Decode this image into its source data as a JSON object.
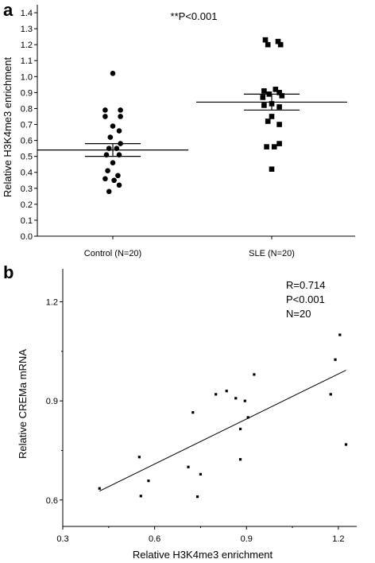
{
  "panel_labels": [
    "a",
    "b"
  ],
  "chart_data": [
    {
      "type": "scatter",
      "subtype": "dot-plot with mean and SEM bars",
      "title": "",
      "annotation": "**P<0.001",
      "xlabel": "",
      "ylabel": "Relative H3K4me3 enrichment",
      "ylim": [
        0,
        1.45
      ],
      "y_ticks": [
        "0.0",
        "0.1",
        "0.2",
        "0.3",
        "0.4",
        "0.5",
        "0.6",
        "0.7",
        "0.8",
        "0.9",
        "1.0",
        "1.1",
        "1.2",
        "1.3",
        "1.4"
      ],
      "categories": [
        "Control (N=20)",
        "SLE (N=20)"
      ],
      "grid": false,
      "series": [
        {
          "marker": "circle",
          "color": "#000000",
          "mean": 0.54,
          "sem_low": 0.5,
          "sem_high": 0.58,
          "points": [
            {
              "dx": 0.0,
              "y": 1.02
            },
            {
              "dx": -0.06,
              "y": 0.79
            },
            {
              "dx": 0.06,
              "y": 0.79
            },
            {
              "dx": -0.06,
              "y": 0.75
            },
            {
              "dx": 0.06,
              "y": 0.75
            },
            {
              "dx": 0.0,
              "y": 0.69
            },
            {
              "dx": 0.05,
              "y": 0.66
            },
            {
              "dx": -0.02,
              "y": 0.62
            },
            {
              "dx": 0.06,
              "y": 0.58
            },
            {
              "dx": -0.03,
              "y": 0.55
            },
            {
              "dx": 0.03,
              "y": 0.55
            },
            {
              "dx": -0.05,
              "y": 0.51
            },
            {
              "dx": 0.05,
              "y": 0.51
            },
            {
              "dx": 0.0,
              "y": 0.46
            },
            {
              "dx": -0.04,
              "y": 0.41
            },
            {
              "dx": 0.04,
              "y": 0.38
            },
            {
              "dx": -0.06,
              "y": 0.36
            },
            {
              "dx": 0.01,
              "y": 0.35
            },
            {
              "dx": 0.05,
              "y": 0.32
            },
            {
              "dx": -0.03,
              "y": 0.28
            }
          ]
        },
        {
          "marker": "square",
          "color": "#000000",
          "mean": 0.84,
          "sem_low": 0.79,
          "sem_high": 0.89,
          "points": [
            {
              "dx": -0.05,
              "y": 1.23
            },
            {
              "dx": 0.05,
              "y": 1.22
            },
            {
              "dx": -0.03,
              "y": 1.2
            },
            {
              "dx": 0.07,
              "y": 1.2
            },
            {
              "dx": 0.03,
              "y": 0.92
            },
            {
              "dx": -0.06,
              "y": 0.91
            },
            {
              "dx": 0.06,
              "y": 0.9
            },
            {
              "dx": -0.02,
              "y": 0.89
            },
            {
              "dx": 0.08,
              "y": 0.88
            },
            {
              "dx": -0.07,
              "y": 0.87
            },
            {
              "dx": 0.0,
              "y": 0.83
            },
            {
              "dx": -0.06,
              "y": 0.82
            },
            {
              "dx": 0.06,
              "y": 0.81
            },
            {
              "dx": 0.0,
              "y": 0.75
            },
            {
              "dx": -0.03,
              "y": 0.72
            },
            {
              "dx": 0.06,
              "y": 0.7
            },
            {
              "dx": 0.06,
              "y": 0.58
            },
            {
              "dx": -0.04,
              "y": 0.56
            },
            {
              "dx": 0.02,
              "y": 0.56
            },
            {
              "dx": 0.0,
              "y": 0.42
            }
          ]
        }
      ]
    },
    {
      "type": "scatter",
      "title": "",
      "annotations": [
        "R=0.714",
        "P<0.001",
        "N=20"
      ],
      "xlabel": "Relative H3K4me3 enrichment",
      "ylabel": "Relative CREMa mRNA",
      "xlim": [
        0.3,
        1.26
      ],
      "ylim": [
        0.52,
        1.3
      ],
      "x_ticks": [
        "0.3",
        "0.6",
        "0.9",
        "1.2"
      ],
      "y_ticks": [
        "0.6",
        "0.9",
        "1.2"
      ],
      "grid": false,
      "points": {
        "x": [
          0.42,
          0.55,
          0.555,
          0.58,
          0.71,
          0.725,
          0.74,
          0.75,
          0.8,
          0.835,
          0.865,
          0.88,
          0.88,
          0.895,
          0.905,
          0.925,
          1.175,
          1.19,
          1.205,
          1.225
        ],
        "y": [
          0.635,
          0.73,
          0.612,
          0.658,
          0.7,
          0.865,
          0.61,
          0.678,
          0.92,
          0.93,
          0.908,
          0.723,
          0.815,
          0.9,
          0.85,
          0.98,
          0.92,
          1.025,
          1.1,
          0.768
        ]
      },
      "fit_line": {
        "x": [
          0.42,
          1.225
        ],
        "y": [
          0.627,
          0.993
        ]
      }
    }
  ]
}
